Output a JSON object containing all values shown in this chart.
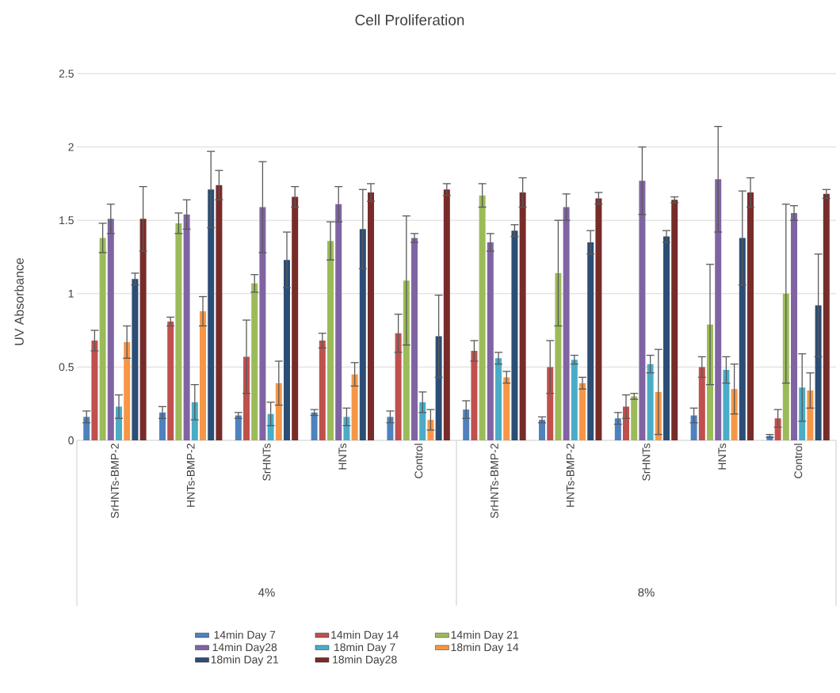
{
  "chart_data": {
    "type": "bar",
    "title": "Cell Proliferation",
    "ylabel": "UV Absorbance",
    "categories": [
      "SrHNTs-BMP-2",
      "HNTs-BMP-2",
      "SrHNTs",
      "HNTs",
      "Control",
      "SrHNTs-BMP-2",
      "HNTs-BMP-2",
      "SrHNTs",
      "HNTs",
      "Control"
    ],
    "annotations": [
      "4%",
      "8%"
    ],
    "ylim": [
      0,
      2.5
    ],
    "yticks": [
      0,
      0.5,
      1,
      1.5,
      2,
      2.5
    ],
    "grid": "y",
    "legend": "bottom",
    "series": [
      {
        "name": "14min Day 7",
        "color": "#4f81bd",
        "values": [
          0.16,
          0.19,
          0.17,
          0.19,
          0.16,
          0.21,
          0.14,
          0.15,
          0.17,
          0.03
        ],
        "errors": [
          0.04,
          0.04,
          0.02,
          0.02,
          0.04,
          0.06,
          0.02,
          0.04,
          0.05,
          0.01
        ]
      },
      {
        "name": "14min Day 14",
        "color": "#c0504d",
        "values": [
          0.68,
          0.81,
          0.57,
          0.68,
          0.73,
          0.61,
          0.5,
          0.23,
          0.5,
          0.15
        ],
        "errors": [
          0.07,
          0.03,
          0.25,
          0.05,
          0.13,
          0.07,
          0.18,
          0.08,
          0.07,
          0.06
        ]
      },
      {
        "name": "14min Day 21",
        "color": "#9bbb59",
        "values": [
          1.38,
          1.48,
          1.07,
          1.36,
          1.09,
          1.67,
          1.14,
          0.3,
          0.79,
          1.0
        ],
        "errors": [
          0.1,
          0.07,
          0.06,
          0.13,
          0.44,
          0.08,
          0.36,
          0.02,
          0.41,
          0.61
        ]
      },
      {
        "name": "14min Day28",
        "color": "#8064a2",
        "values": [
          1.51,
          1.54,
          1.59,
          1.61,
          1.38,
          1.35,
          1.59,
          1.77,
          1.78,
          1.55
        ],
        "errors": [
          0.1,
          0.1,
          0.31,
          0.12,
          0.03,
          0.06,
          0.09,
          0.23,
          0.36,
          0.05
        ]
      },
      {
        "name": "18min Day 7",
        "color": "#4bacc6",
        "values": [
          0.23,
          0.26,
          0.18,
          0.16,
          0.26,
          0.56,
          0.55,
          0.52,
          0.48,
          0.36
        ],
        "errors": [
          0.08,
          0.12,
          0.08,
          0.06,
          0.07,
          0.04,
          0.03,
          0.06,
          0.09,
          0.23
        ]
      },
      {
        "name": "18min Day 14",
        "color": "#f79646",
        "values": [
          0.67,
          0.88,
          0.39,
          0.45,
          0.14,
          0.43,
          0.39,
          0.33,
          0.35,
          0.34
        ],
        "errors": [
          0.11,
          0.1,
          0.15,
          0.08,
          0.07,
          0.04,
          0.04,
          0.29,
          0.17,
          0.12
        ]
      },
      {
        "name": "18min Day 21",
        "color": "#2c4d75",
        "values": [
          1.1,
          1.71,
          1.23,
          1.44,
          0.71,
          1.43,
          1.35,
          1.39,
          1.38,
          0.92
        ],
        "errors": [
          0.04,
          0.26,
          0.19,
          0.27,
          0.28,
          0.04,
          0.08,
          0.04,
          0.32,
          0.35
        ]
      },
      {
        "name": "18min Day28",
        "color": "#772c2a",
        "values": [
          1.51,
          1.74,
          1.66,
          1.69,
          1.71,
          1.69,
          1.65,
          1.64,
          1.69,
          1.68
        ],
        "errors": [
          0.22,
          0.1,
          0.07,
          0.06,
          0.04,
          0.1,
          0.04,
          0.02,
          0.1,
          0.03
        ]
      }
    ]
  }
}
